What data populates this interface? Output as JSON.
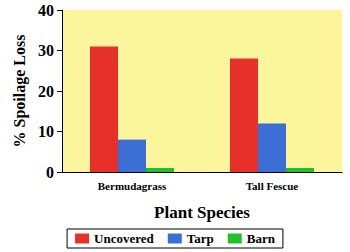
{
  "chart_data": {
    "type": "bar",
    "categories": [
      "Bermudagrass",
      "Tall Fescue"
    ],
    "series": [
      {
        "name": "Uncovered",
        "color": "#e8302a",
        "values": [
          31,
          28
        ]
      },
      {
        "name": "Tarp",
        "color": "#3b6fd6",
        "values": [
          8,
          12
        ]
      },
      {
        "name": "Barn",
        "color": "#22c02a",
        "values": [
          1,
          1
        ]
      }
    ],
    "xlabel": "Plant Species",
    "ylabel": "% Spoilage Loss",
    "ylim": [
      0,
      40
    ],
    "yticks": [
      0,
      10,
      20,
      30,
      40
    ],
    "grid": false,
    "legend": "bottom"
  }
}
